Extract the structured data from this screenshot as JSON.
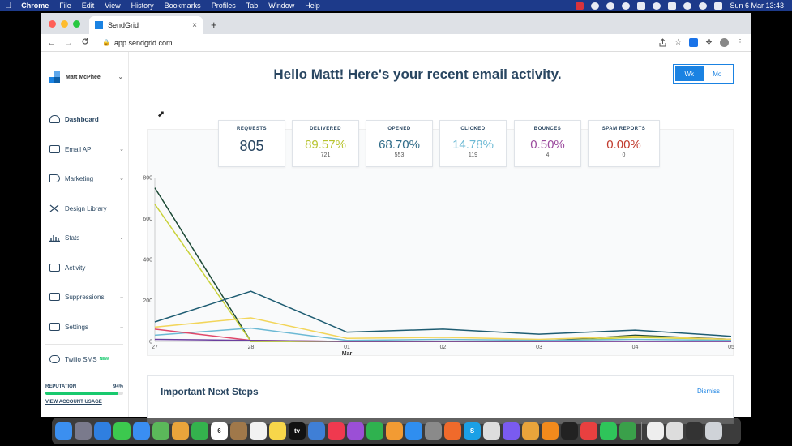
{
  "menubar": {
    "apple": "",
    "items": [
      "Chrome",
      "File",
      "Edit",
      "View",
      "History",
      "Bookmarks",
      "Profiles",
      "Tab",
      "Window",
      "Help"
    ],
    "datetime": "Sun 6 Mar  13:43"
  },
  "browser": {
    "tab_title": "SendGrid",
    "tab_close": "×",
    "new_tab": "+",
    "url": "app.sendgrid.com",
    "back": "←",
    "forward": "→",
    "reload": "C"
  },
  "sidebar": {
    "user_name": "Matt McPhee",
    "items": [
      {
        "label": "Dashboard",
        "chevron": false
      },
      {
        "label": "Email API",
        "chevron": true
      },
      {
        "label": "Marketing",
        "chevron": true
      },
      {
        "label": "Design Library",
        "chevron": false
      },
      {
        "label": "Stats",
        "chevron": true
      },
      {
        "label": "Activity",
        "chevron": false
      },
      {
        "label": "Suppressions",
        "chevron": true
      },
      {
        "label": "Settings",
        "chevron": true
      }
    ],
    "twilio_label": "Twilio SMS",
    "twilio_badge": "NEW",
    "reputation_label": "REPUTATION",
    "reputation_value": "94%",
    "reputation_fraction": 0.94,
    "view_usage": "VIEW ACCOUNT USAGE"
  },
  "header": {
    "title": "Hello Matt! Here's your recent email activity.",
    "toggle_week": "Wk",
    "toggle_month": "Mo"
  },
  "stats": [
    {
      "label": "REQUESTS",
      "value": "805",
      "count": "",
      "color": "#294661"
    },
    {
      "label": "DELIVERED",
      "value": "89.57%",
      "count": "721",
      "color": "#b7c32d"
    },
    {
      "label": "OPENED",
      "value": "68.70%",
      "count": "553",
      "color": "#2f6b88"
    },
    {
      "label": "CLICKED",
      "value": "14.78%",
      "count": "119",
      "color": "#6cb9d4"
    },
    {
      "label": "BOUNCES",
      "value": "0.50%",
      "count": "4",
      "color": "#9c4c9e"
    },
    {
      "label": "SPAM REPORTS",
      "value": "0.00%",
      "count": "0",
      "color": "#c0392b"
    }
  ],
  "chart_data": {
    "type": "line",
    "x": [
      "27",
      "28",
      "01",
      "02",
      "03",
      "04",
      "05"
    ],
    "x_sublabel": {
      "01": "Mar"
    },
    "ylim": [
      0,
      800
    ],
    "yticks": [
      0,
      200,
      400,
      600,
      800
    ],
    "series": [
      {
        "color": "#1d4a36",
        "values": [
          750,
          0,
          0,
          0,
          0,
          30,
          10
        ]
      },
      {
        "color": "#c9d23a",
        "values": [
          670,
          0,
          0,
          0,
          0,
          20,
          10
        ]
      },
      {
        "color": "#1e5c72",
        "values": [
          95,
          245,
          45,
          60,
          35,
          55,
          25
        ]
      },
      {
        "color": "#f2d55a",
        "values": [
          70,
          115,
          15,
          20,
          10,
          25,
          10
        ]
      },
      {
        "color": "#6cb9d4",
        "values": [
          30,
          65,
          5,
          10,
          5,
          10,
          5
        ]
      },
      {
        "color": "#e0486a",
        "values": [
          60,
          5,
          0,
          0,
          0,
          0,
          0
        ]
      },
      {
        "color": "#6a3f9e",
        "values": [
          10,
          5,
          0,
          0,
          0,
          0,
          0
        ]
      }
    ]
  },
  "next_steps": {
    "title": "Important Next Steps",
    "dismiss": "Dismiss"
  },
  "dock": {
    "apps": [
      {
        "icon": "finder-icon",
        "color": "#3b8ff0"
      },
      {
        "icon": "launchpad-icon",
        "color": "#7a7a8c"
      },
      {
        "icon": "safari-icon",
        "color": "#2f7fe0"
      },
      {
        "icon": "messages-icon",
        "color": "#3cc94e"
      },
      {
        "icon": "mail-icon",
        "color": "#3a8ef2"
      },
      {
        "icon": "maps-icon",
        "color": "#5bb85a"
      },
      {
        "icon": "photos-icon",
        "color": "#e9a43b"
      },
      {
        "icon": "facetime-icon",
        "color": "#34b24d"
      },
      {
        "icon": "calendar-icon",
        "color": "#ffffff"
      },
      {
        "icon": "contacts-icon",
        "color": "#a0784a"
      },
      {
        "icon": "reminders-icon",
        "color": "#f2f2f2"
      },
      {
        "icon": "notes-icon",
        "color": "#f7d64a"
      },
      {
        "icon": "tv-icon",
        "color": "#111111"
      },
      {
        "icon": "keynote-icon",
        "color": "#3f7fd6"
      },
      {
        "icon": "music-icon",
        "color": "#f0394f"
      },
      {
        "icon": "podcasts-icon",
        "color": "#9b4fd6"
      },
      {
        "icon": "numbers-icon",
        "color": "#2fb24f"
      },
      {
        "icon": "pages-icon",
        "color": "#f29b33"
      },
      {
        "icon": "app-store-icon",
        "color": "#2f8ef0"
      },
      {
        "icon": "system-preferences-icon",
        "color": "#8a8a8a"
      },
      {
        "icon": "firefox-icon",
        "color": "#f06a2b"
      },
      {
        "icon": "skype-icon",
        "color": "#1ba0e6"
      },
      {
        "icon": "script-editor-icon",
        "color": "#dddddd"
      },
      {
        "icon": "messenger-icon",
        "color": "#7a5bf0"
      },
      {
        "icon": "chrome-icon",
        "color": "#e9a43b"
      },
      {
        "icon": "vlc-icon",
        "color": "#f28a1c"
      },
      {
        "icon": "terminal-icon",
        "color": "#222222"
      },
      {
        "icon": "anydesk-icon",
        "color": "#e84040"
      },
      {
        "icon": "whatsapp-icon",
        "color": "#2fc45a"
      },
      {
        "icon": "camtasia-icon",
        "color": "#3aa04a"
      },
      {
        "icon": "document-icon",
        "color": "#eeeeee"
      },
      {
        "icon": "preview-icon",
        "color": "#dddddd"
      },
      {
        "icon": "screen-icon",
        "color": "#333333"
      },
      {
        "icon": "trash-icon",
        "color": "#cfd3d8"
      }
    ],
    "calendar_day": "6",
    "tv_label": "tv",
    "skype_label": "S"
  }
}
